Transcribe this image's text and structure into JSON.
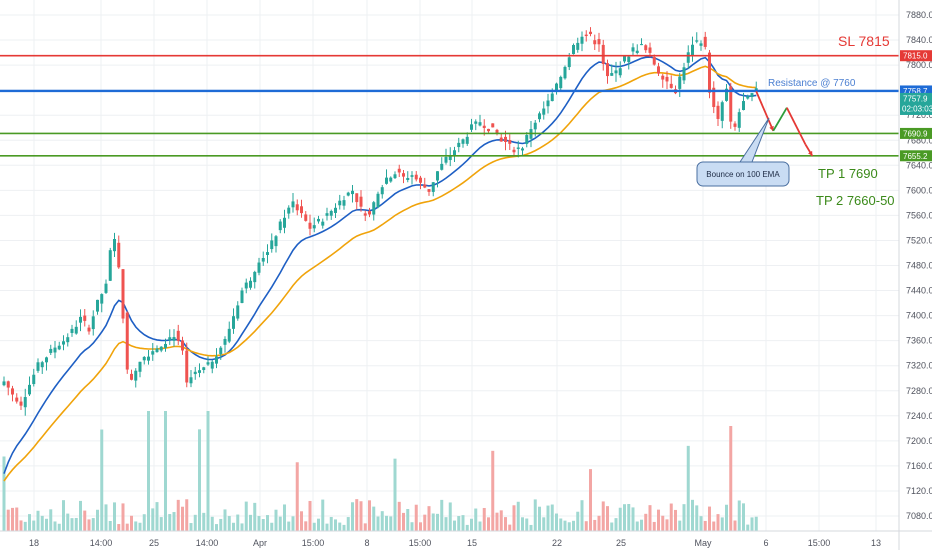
{
  "chart_data": {
    "type": "candlestick",
    "instrument_hint": "",
    "ylim": [
      7060,
      7890
    ],
    "y_ticks": [
      7080,
      7120,
      7160,
      7200,
      7240,
      7280,
      7320,
      7360,
      7400,
      7440,
      7480,
      7520,
      7560,
      7600,
      7640,
      7680,
      7720,
      7760,
      7800,
      7840,
      7880
    ],
    "x_ticks": [
      "18",
      "14:00",
      "25",
      "14:00",
      "Apr",
      "15:00",
      "8",
      "15:00",
      "15",
      "22",
      "25",
      "May",
      "6",
      "15:00",
      "13"
    ],
    "grid": true,
    "price_levels": [
      {
        "name": "SL 7815",
        "value": 7815.0,
        "tag": "7815.0",
        "color": "#e53935"
      },
      {
        "name": "Resistance @ 7760",
        "value": 7758.7,
        "tag": "7758.7",
        "color": "#1e6bd6"
      },
      {
        "name": "TP 1 7690",
        "value": 7690.9,
        "tag": "7690.9",
        "color": "#4a9a24"
      },
      {
        "name": "TP 2 7660-50",
        "value": 7655.2,
        "tag": "7655.2",
        "color": "#4a9a24"
      }
    ],
    "current_price": {
      "value": 7757.9,
      "tag": "7757.9",
      "countdown": "02:03:03",
      "color": "#26a69a"
    },
    "annotations": {
      "sl": "SL 7815",
      "resistance": "Resistance @ 7760",
      "tp1": "TP 1 7690",
      "tp2": "TP 2 7660-50",
      "callout": "Bounce on 100 EMA"
    },
    "projection": [
      {
        "t": 0.0,
        "price": 7758
      },
      {
        "t": 1.0,
        "price": 7695
      },
      {
        "t": 1.8,
        "price": 7732
      },
      {
        "t": 2.9,
        "price": 7673
      },
      {
        "t": 3.3,
        "price": 7655
      }
    ],
    "candle_keypoints": [
      [
        0,
        7295
      ],
      [
        2,
        7275
      ],
      [
        4,
        7260
      ],
      [
        6,
        7290
      ],
      [
        8,
        7320
      ],
      [
        10,
        7335
      ],
      [
        12,
        7350
      ],
      [
        14,
        7360
      ],
      [
        16,
        7375
      ],
      [
        18,
        7395
      ],
      [
        20,
        7380
      ],
      [
        22,
        7420
      ],
      [
        24,
        7450
      ],
      [
        25,
        7500
      ],
      [
        26,
        7520
      ],
      [
        27,
        7480
      ],
      [
        28,
        7400
      ],
      [
        29,
        7310
      ],
      [
        30,
        7300
      ],
      [
        32,
        7330
      ],
      [
        34,
        7340
      ],
      [
        36,
        7350
      ],
      [
        38,
        7360
      ],
      [
        40,
        7370
      ],
      [
        42,
        7340
      ],
      [
        43,
        7290
      ],
      [
        44,
        7300
      ],
      [
        46,
        7310
      ],
      [
        48,
        7320
      ],
      [
        50,
        7340
      ],
      [
        52,
        7360
      ],
      [
        54,
        7400
      ],
      [
        56,
        7440
      ],
      [
        58,
        7460
      ],
      [
        60,
        7490
      ],
      [
        62,
        7500
      ],
      [
        64,
        7530
      ],
      [
        66,
        7560
      ],
      [
        68,
        7580
      ],
      [
        70,
        7560
      ],
      [
        72,
        7540
      ],
      [
        74,
        7550
      ],
      [
        76,
        7560
      ],
      [
        78,
        7575
      ],
      [
        80,
        7590
      ],
      [
        82,
        7600
      ],
      [
        84,
        7570
      ],
      [
        86,
        7560
      ],
      [
        88,
        7600
      ],
      [
        90,
        7620
      ],
      [
        92,
        7630
      ],
      [
        94,
        7620
      ],
      [
        96,
        7625
      ],
      [
        98,
        7610
      ],
      [
        100,
        7600
      ],
      [
        102,
        7630
      ],
      [
        104,
        7650
      ],
      [
        106,
        7665
      ],
      [
        108,
        7680
      ],
      [
        110,
        7700
      ],
      [
        112,
        7710
      ],
      [
        114,
        7700
      ],
      [
        116,
        7690
      ],
      [
        118,
        7675
      ],
      [
        120,
        7665
      ],
      [
        122,
        7670
      ],
      [
        124,
        7700
      ],
      [
        126,
        7720
      ],
      [
        128,
        7740
      ],
      [
        130,
        7765
      ],
      [
        132,
        7800
      ],
      [
        134,
        7830
      ],
      [
        136,
        7850
      ],
      [
        138,
        7845
      ],
      [
        140,
        7830
      ],
      [
        141,
        7800
      ],
      [
        142,
        7780
      ],
      [
        144,
        7790
      ],
      [
        146,
        7810
      ],
      [
        148,
        7825
      ],
      [
        150,
        7830
      ],
      [
        152,
        7815
      ],
      [
        154,
        7790
      ],
      [
        156,
        7775
      ],
      [
        158,
        7760
      ],
      [
        160,
        7800
      ],
      [
        162,
        7835
      ],
      [
        164,
        7840
      ],
      [
        165,
        7825
      ],
      [
        166,
        7760
      ],
      [
        167,
        7730
      ],
      [
        168,
        7710
      ],
      [
        169,
        7740
      ],
      [
        170,
        7760
      ],
      [
        171,
        7705
      ],
      [
        172,
        7700
      ],
      [
        173,
        7725
      ],
      [
        174,
        7740
      ],
      [
        175,
        7745
      ],
      [
        176,
        7752
      ],
      [
        177,
        7758
      ]
    ]
  }
}
